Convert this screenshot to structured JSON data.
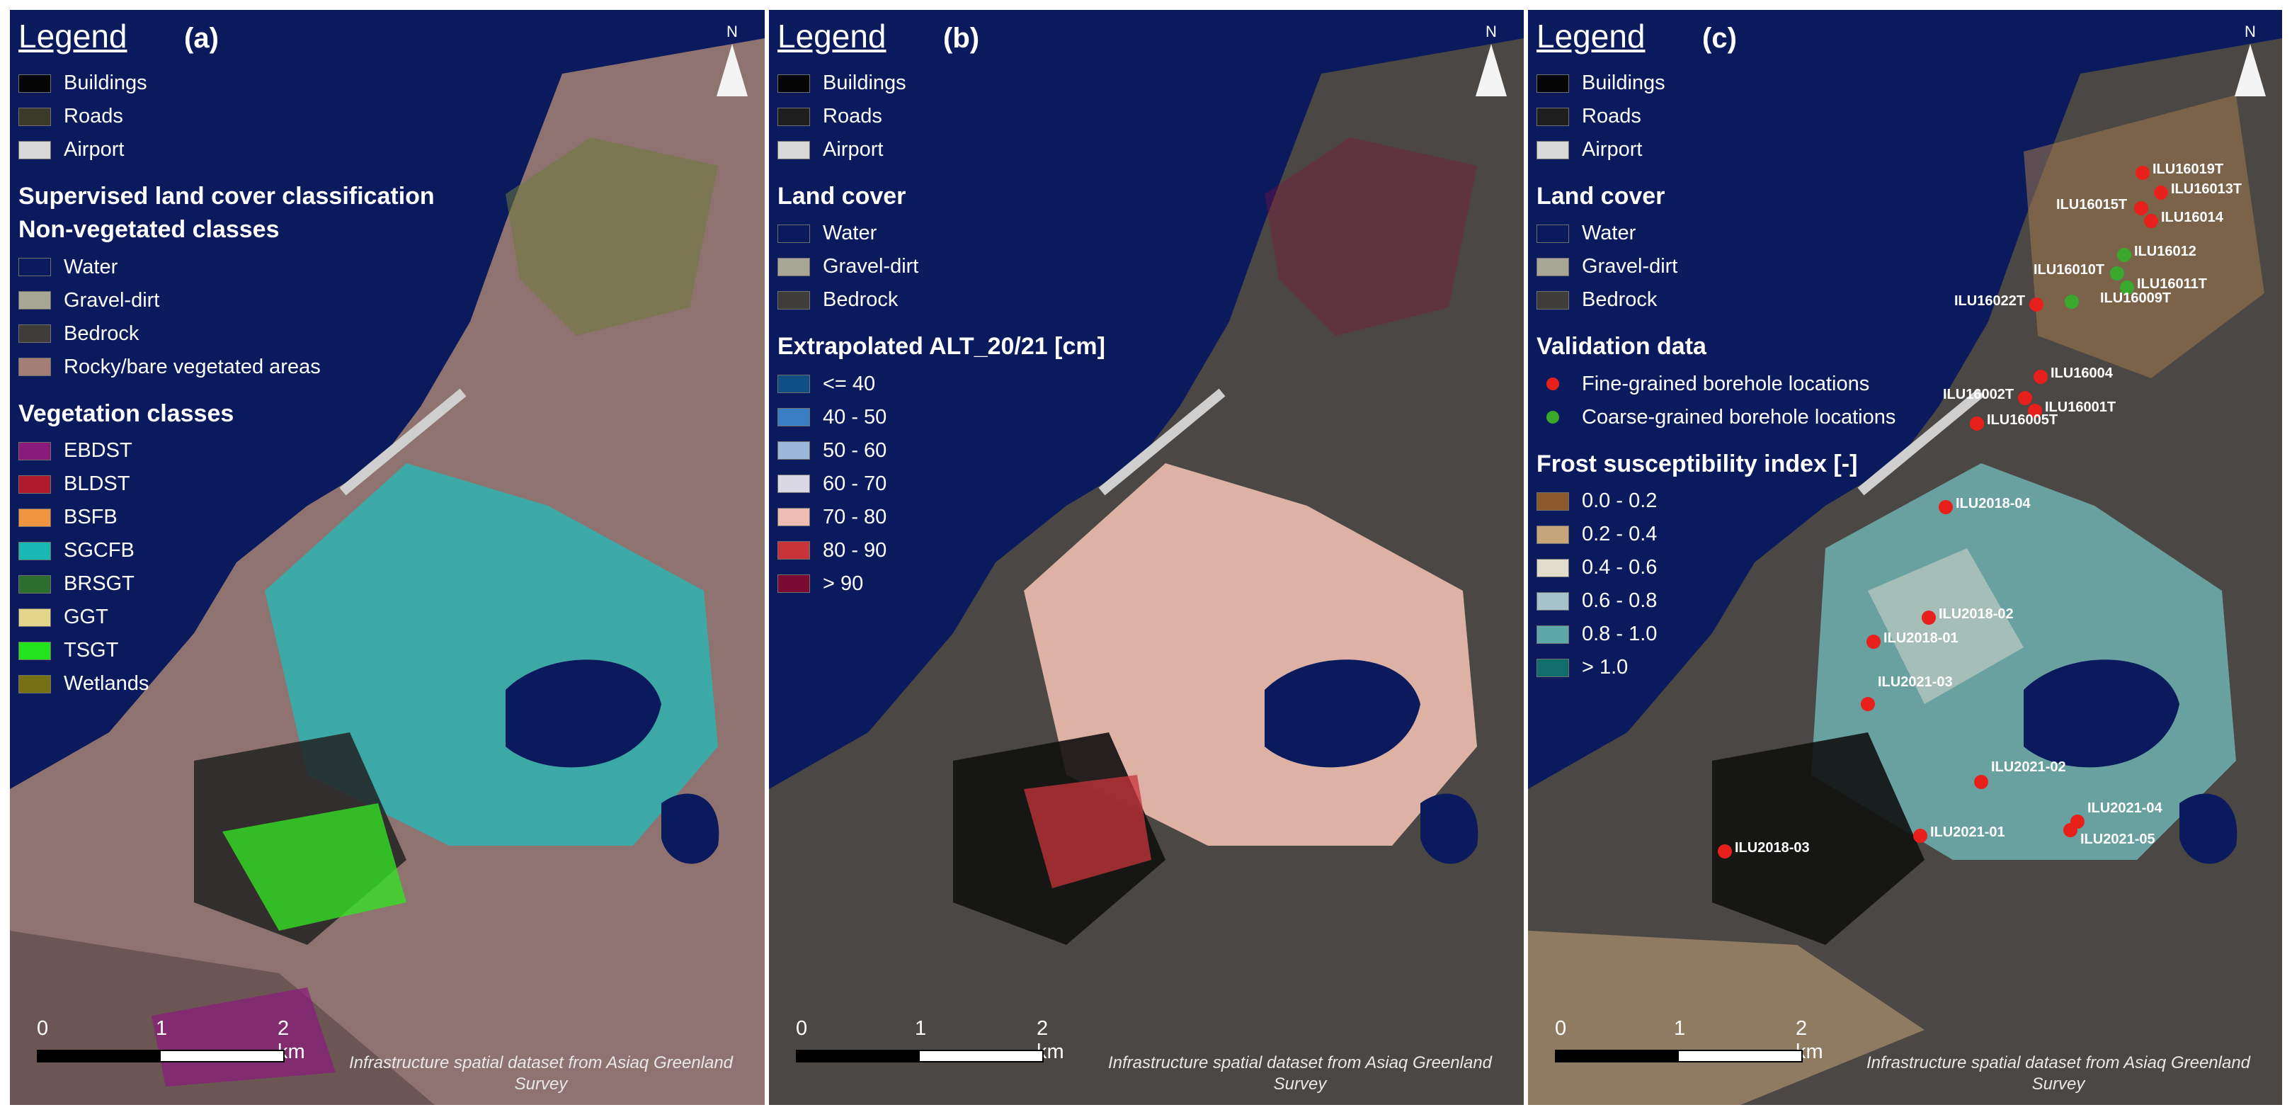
{
  "legend_title": "Legend",
  "north_label": "N",
  "scale_labels": [
    "0",
    "1",
    "2 km"
  ],
  "credit": "Infrastructure spatial dataset from Asiaq Greenland Survey",
  "panels": [
    {
      "label": "(a)",
      "base_items": [
        {
          "label": "Buildings",
          "color": "#050505"
        },
        {
          "label": "Roads",
          "color": "#3b3a28"
        },
        {
          "label": "Airport",
          "color": "#d8d8d8"
        }
      ],
      "heading": "Supervised land cover classification",
      "nonveg_heading": "Non-vegetated classes",
      "nonveg_items": [
        {
          "label": "Water",
          "color": "#0a1a5c"
        },
        {
          "label": "Gravel-dirt",
          "color": "#a8a694"
        },
        {
          "label": "Bedrock",
          "color": "#3f3d39"
        },
        {
          "label": "Rocky/bare vegetated areas",
          "color": "#a47d77"
        }
      ],
      "veg_heading": "Vegetation classes",
      "veg_items": [
        {
          "label": "EBDST",
          "color": "#8a1a7c"
        },
        {
          "label": "BLDST",
          "color": "#b0192c"
        },
        {
          "label": "BSFB",
          "color": "#f09641"
        },
        {
          "label": "SGCFB",
          "color": "#19b8b4"
        },
        {
          "label": "BRSGT",
          "color": "#2c6e2e"
        },
        {
          "label": "GGT",
          "color": "#e3d68a"
        },
        {
          "label": "TSGT",
          "color": "#22e41a"
        },
        {
          "label": "Wetlands",
          "color": "#757012"
        }
      ]
    },
    {
      "label": "(b)",
      "base_items": [
        {
          "label": "Buildings",
          "color": "#050505"
        },
        {
          "label": "Roads",
          "color": "#1e1e1e"
        },
        {
          "label": "Airport",
          "color": "#d8d8d8"
        }
      ],
      "landcover_heading": "Land cover",
      "landcover_items": [
        {
          "label": "Water",
          "color": "#0a1a5c"
        },
        {
          "label": "Gravel-dirt",
          "color": "#a8a694"
        },
        {
          "label": "Bedrock",
          "color": "#3f3d39"
        }
      ],
      "alt_heading": "Extrapolated ALT_20/21 [cm]",
      "alt_items": [
        {
          "label": "<= 40",
          "color": "#0f4f84"
        },
        {
          "label": "40 - 50",
          "color": "#3a7fc4"
        },
        {
          "label": "50 - 60",
          "color": "#9bb7d9"
        },
        {
          "label": "60 - 70",
          "color": "#d9d8e4"
        },
        {
          "label": "70 - 80",
          "color": "#eebcb0"
        },
        {
          "label": "80 - 90",
          "color": "#c8343a"
        },
        {
          "label": "> 90",
          "color": "#7a0a32"
        }
      ]
    },
    {
      "label": "(c)",
      "base_items": [
        {
          "label": "Buildings",
          "color": "#050505"
        },
        {
          "label": "Roads",
          "color": "#1e1e1e"
        },
        {
          "label": "Airport",
          "color": "#d8d8d8"
        }
      ],
      "landcover_heading": "Land cover",
      "landcover_items": [
        {
          "label": "Water",
          "color": "#0a1a5c"
        },
        {
          "label": "Gravel-dirt",
          "color": "#a8a694"
        },
        {
          "label": "Bedrock",
          "color": "#3f3d39"
        }
      ],
      "validation_heading": "Validation data",
      "validation_items": [
        {
          "label": "Fine-grained borehole locations",
          "color": "#e8201c"
        },
        {
          "label": "Coarse-grained borehole locations",
          "color": "#3aa82c"
        }
      ],
      "fsi_heading": "Frost susceptibility index [-]",
      "fsi_items": [
        {
          "label": "0.0 - 0.2",
          "color": "#8a5a2a"
        },
        {
          "label": "0.2 - 0.4",
          "color": "#c7a57a"
        },
        {
          "label": "0.4 - 0.6",
          "color": "#e2dccd"
        },
        {
          "label": "0.6 - 0.8",
          "color": "#a6c3cc"
        },
        {
          "label": "0.8 - 1.0",
          "color": "#5ea7a8"
        },
        {
          "label": "> 1.0",
          "color": "#0f6e6c"
        }
      ],
      "boreholes": [
        {
          "label": "ILU16019T",
          "type": "fine"
        },
        {
          "label": "ILU16013T",
          "type": "fine"
        },
        {
          "label": "ILU16015T",
          "type": "fine"
        },
        {
          "label": "ILU16014",
          "type": "fine"
        },
        {
          "label": "ILU16012",
          "type": "coarse"
        },
        {
          "label": "ILU16010T",
          "type": "coarse"
        },
        {
          "label": "ILU16011T",
          "type": "coarse"
        },
        {
          "label": "ILU16022T",
          "type": "fine"
        },
        {
          "label": "ILU16009T",
          "type": "coarse"
        },
        {
          "label": "ILU16004",
          "type": "fine"
        },
        {
          "label": "ILU16002T",
          "type": "fine"
        },
        {
          "label": "ILU16001T",
          "type": "fine"
        },
        {
          "label": "ILU16005T",
          "type": "fine"
        },
        {
          "label": "ILU2018-04",
          "type": "fine"
        },
        {
          "label": "ILU2018-02",
          "type": "fine"
        },
        {
          "label": "ILU2018-01",
          "type": "fine"
        },
        {
          "label": "ILU2021-03",
          "type": "fine"
        },
        {
          "label": "ILU2021-02",
          "type": "fine"
        },
        {
          "label": "ILU2021-04",
          "type": "fine"
        },
        {
          "label": "ILU2021-01",
          "type": "fine"
        },
        {
          "label": "ILU2021-05",
          "type": "fine"
        },
        {
          "label": "ILU2018-03",
          "type": "fine"
        }
      ]
    }
  ]
}
